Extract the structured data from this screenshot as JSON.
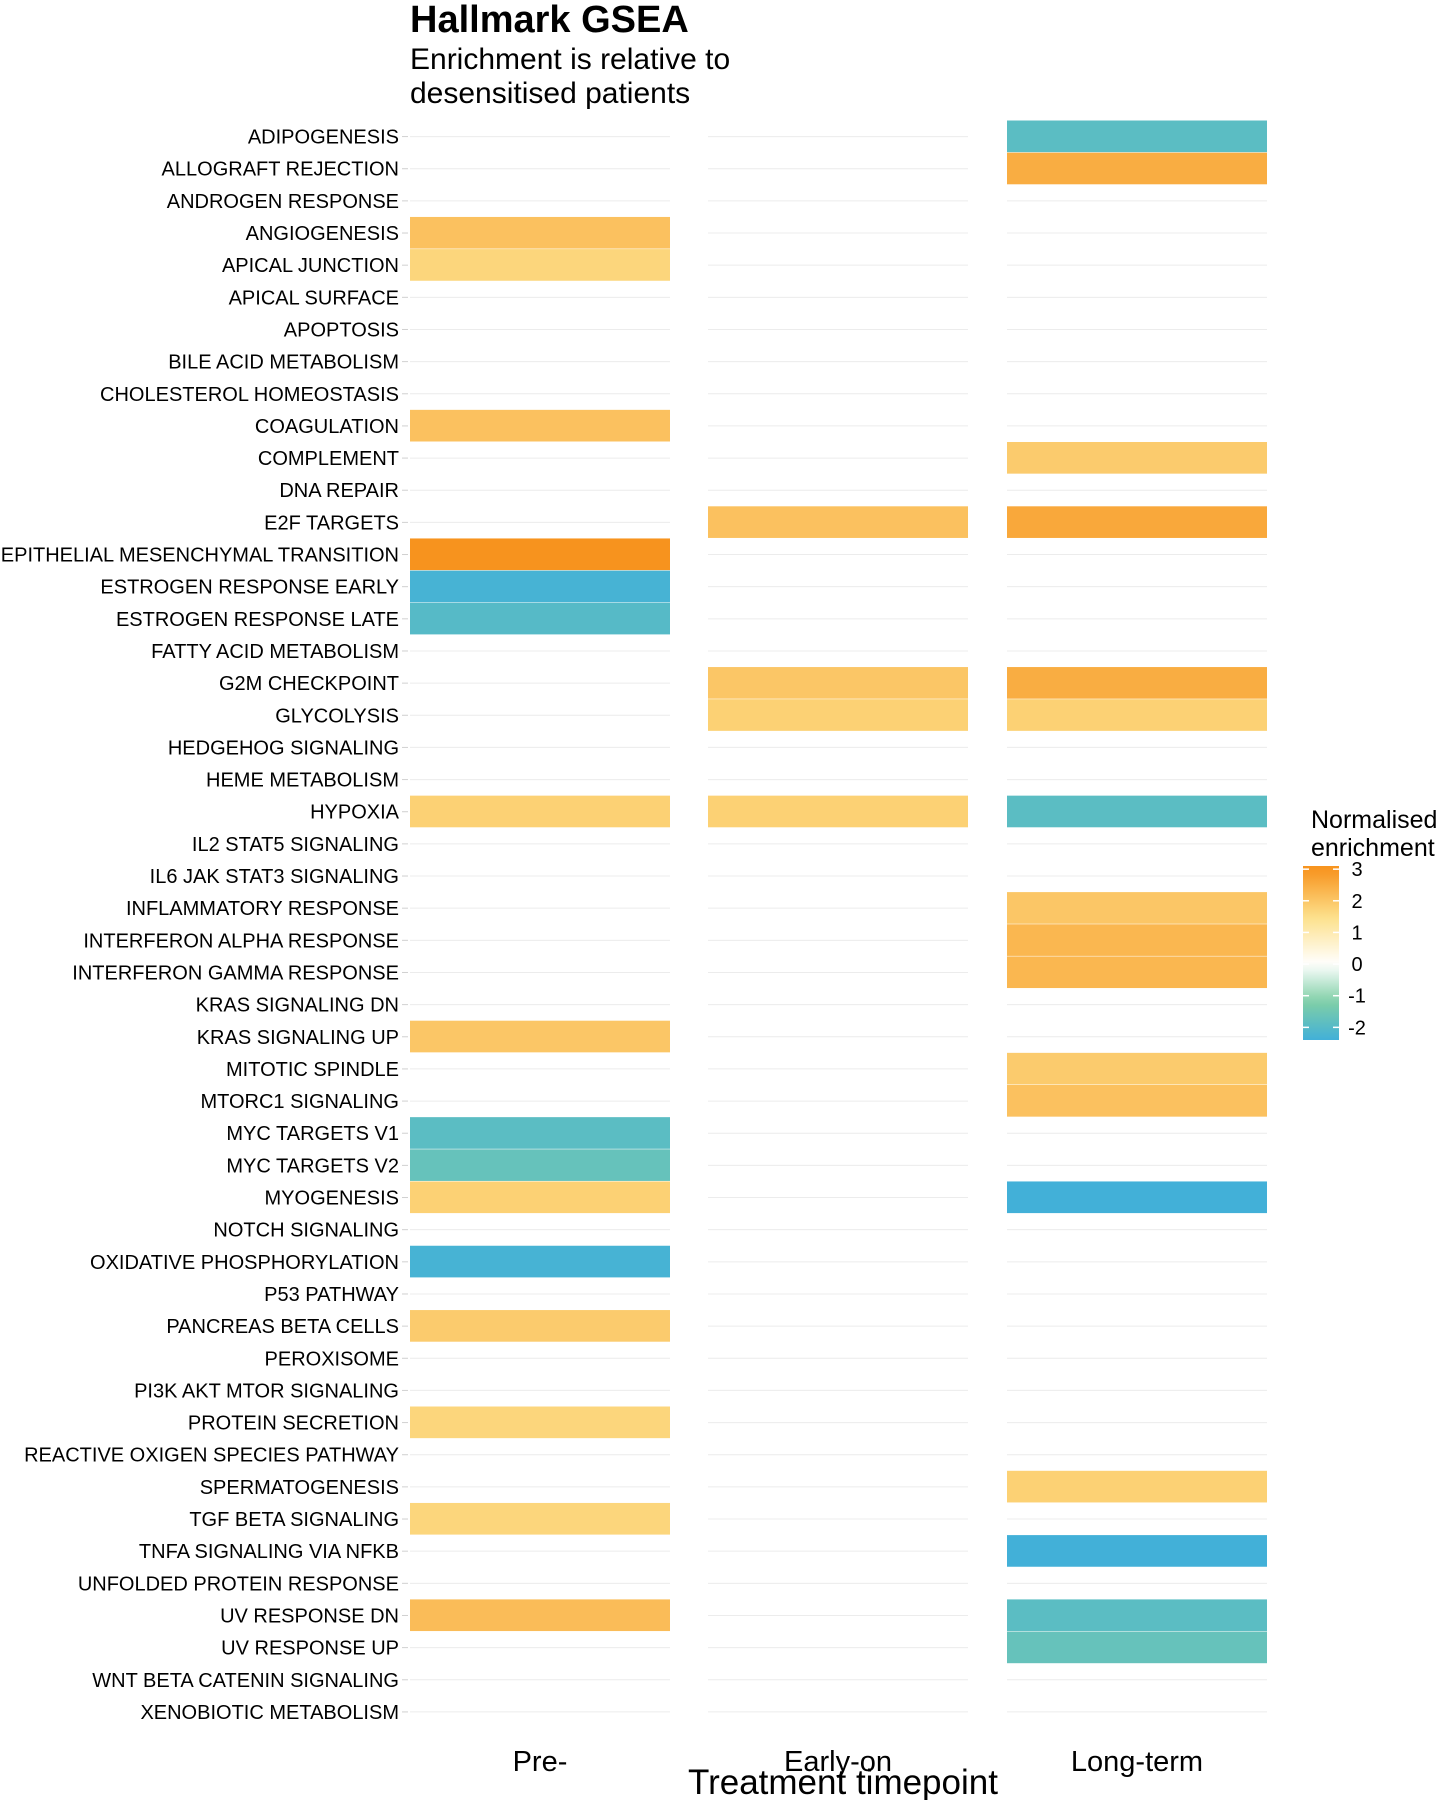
{
  "chart_data": {
    "type": "heatmap",
    "title": "Hallmark GSEA",
    "subtitle_lines": [
      "Enrichment is relative to",
      "desensitised patients"
    ],
    "xlabel": "Treatment timepoint",
    "ylabel": "",
    "columns": [
      "Pre-",
      "Early-on",
      "Long-term"
    ],
    "rows": [
      "ADIPOGENESIS",
      "ALLOGRAFT REJECTION",
      "ANDROGEN RESPONSE",
      "ANGIOGENESIS",
      "APICAL JUNCTION",
      "APICAL SURFACE",
      "APOPTOSIS",
      "BILE ACID METABOLISM",
      "CHOLESTEROL HOMEOSTASIS",
      "COAGULATION",
      "COMPLEMENT",
      "DNA REPAIR",
      "E2F TARGETS",
      "EPITHELIAL MESENCHYMAL TRANSITION",
      "ESTROGEN RESPONSE EARLY",
      "ESTROGEN RESPONSE LATE",
      "FATTY ACID METABOLISM",
      "G2M CHECKPOINT",
      "GLYCOLYSIS",
      "HEDGEHOG SIGNALING",
      "HEME METABOLISM",
      "HYPOXIA",
      "IL2 STAT5 SIGNALING",
      "IL6 JAK STAT3 SIGNALING",
      "INFLAMMATORY RESPONSE",
      "INTERFERON ALPHA RESPONSE",
      "INTERFERON GAMMA RESPONSE",
      "KRAS SIGNALING DN",
      "KRAS SIGNALING UP",
      "MITOTIC SPINDLE",
      "MTORC1 SIGNALING",
      "MYC TARGETS V1",
      "MYC TARGETS V2",
      "MYOGENESIS",
      "NOTCH SIGNALING",
      "OXIDATIVE PHOSPHORYLATION",
      "P53 PATHWAY",
      "PANCREAS BETA CELLS",
      "PEROXISOME",
      "PI3K AKT MTOR SIGNALING",
      "PROTEIN SECRETION",
      "REACTIVE OXIGEN SPECIES PATHWAY",
      "SPERMATOGENESIS",
      "TGF BETA SIGNALING",
      "TNFA SIGNALING VIA NFKB",
      "UNFOLDED PROTEIN RESPONSE",
      "UV RESPONSE DN",
      "UV RESPONSE UP",
      "WNT BETA CATENIN SIGNALING",
      "XENOBIOTIC METABOLISM"
    ],
    "values": [
      [
        null,
        null,
        -1.9
      ],
      [
        null,
        null,
        2.5
      ],
      [
        null,
        null,
        null
      ],
      [
        2.1,
        null,
        null
      ],
      [
        1.7,
        null,
        null
      ],
      [
        null,
        null,
        null
      ],
      [
        null,
        null,
        null
      ],
      [
        null,
        null,
        null
      ],
      [
        null,
        null,
        null
      ],
      [
        2.1,
        null,
        null
      ],
      [
        null,
        null,
        1.9
      ],
      [
        null,
        null,
        null
      ],
      [
        null,
        2.1,
        2.6
      ],
      [
        3.0,
        null,
        null
      ],
      [
        -2.3,
        null,
        null
      ],
      [
        -2.0,
        null,
        null
      ],
      [
        null,
        null,
        null
      ],
      [
        null,
        2.0,
        2.5
      ],
      [
        null,
        1.8,
        1.8
      ],
      [
        null,
        null,
        null
      ],
      [
        null,
        null,
        null
      ],
      [
        1.8,
        1.8,
        -1.9
      ],
      [
        null,
        null,
        null
      ],
      [
        null,
        null,
        null
      ],
      [
        null,
        null,
        2.0
      ],
      [
        null,
        null,
        2.3
      ],
      [
        null,
        null,
        2.3
      ],
      [
        null,
        null,
        null
      ],
      [
        2.0,
        null,
        null
      ],
      [
        null,
        null,
        1.9
      ],
      [
        null,
        null,
        2.1
      ],
      [
        -1.9,
        null,
        null
      ],
      [
        -1.7,
        null,
        null
      ],
      [
        1.8,
        null,
        -2.5
      ],
      [
        null,
        null,
        null
      ],
      [
        -2.3,
        null,
        null
      ],
      [
        null,
        null,
        null
      ],
      [
        1.9,
        null,
        null
      ],
      [
        null,
        null,
        null
      ],
      [
        null,
        null,
        null
      ],
      [
        1.7,
        null,
        null
      ],
      [
        null,
        null,
        null
      ],
      [
        null,
        null,
        1.8
      ],
      [
        1.7,
        null,
        null
      ],
      [
        null,
        null,
        -2.5
      ],
      [
        null,
        null,
        null
      ],
      [
        2.2,
        null,
        -1.9
      ],
      [
        null,
        null,
        -1.7
      ],
      [
        null,
        null,
        null
      ],
      [
        null,
        null,
        null
      ]
    ],
    "legend": {
      "title_lines": [
        "Normalised",
        "enrichment"
      ],
      "ticks": [
        3,
        2,
        1,
        0,
        -1,
        -2
      ],
      "range": [
        -2.4,
        3.1
      ],
      "colors": {
        "high": "#f7931e",
        "mid_high": "#fde08a",
        "zero": "#ffffff",
        "mid_low": "#7fcfa6",
        "low": "#42b0d8"
      },
      "placement": "right"
    },
    "grid": true
  }
}
